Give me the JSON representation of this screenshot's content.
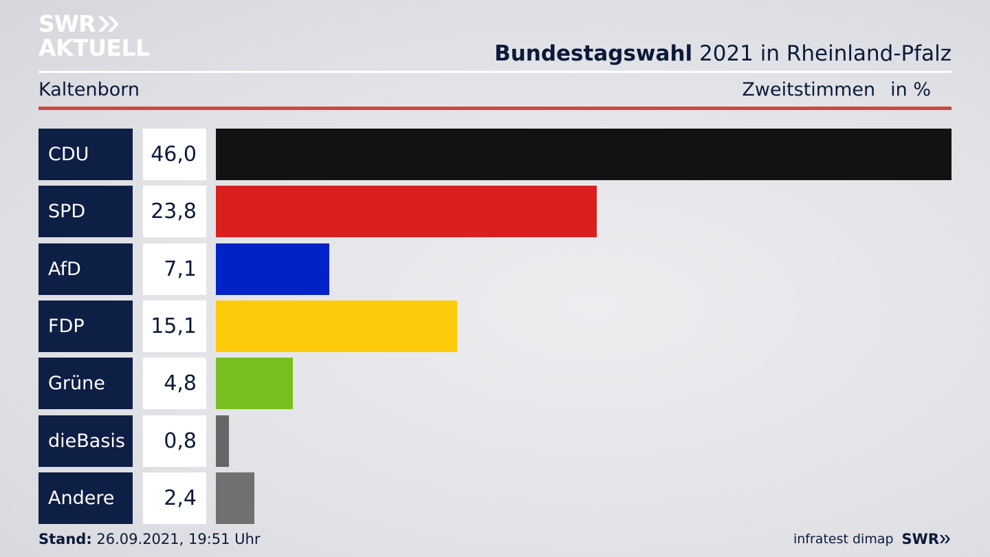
{
  "header": {
    "logo_line1": "SWR",
    "logo_line2": "AKTUELL",
    "title_bold": "Bundestagswahl",
    "title_rest": " 2021 in Rheinland-Pfalz",
    "subtitle": "Kaltenborn",
    "measure": "Zweitstimmen",
    "unit": "in %"
  },
  "chart_data": {
    "type": "bar",
    "orientation": "horizontal",
    "categories": [
      "CDU",
      "SPD",
      "AfD",
      "FDP",
      "Grüne",
      "dieBasis",
      "Andere"
    ],
    "values": [
      46.0,
      23.8,
      7.1,
      15.1,
      4.8,
      0.8,
      2.4
    ],
    "value_labels": [
      "46,0",
      "23,8",
      "7,1",
      "15,1",
      "4,8",
      "0,8",
      "2,4"
    ],
    "colors": [
      "#121212",
      "#d91f1f",
      "#0022c7",
      "#fecb0a",
      "#77bf1f",
      "#676767",
      "#707070"
    ],
    "xlim": [
      0,
      46.0
    ],
    "title": "Bundestagswahl 2021 in Rheinland-Pfalz",
    "subtitle": "Kaltenborn",
    "ylabel": "",
    "xlabel": ""
  },
  "footer": {
    "stand_label": "Stand:",
    "stand_value": " 26.09.2021, 19:51 Uhr",
    "source": "infratest dimap",
    "brand": "SWR"
  }
}
